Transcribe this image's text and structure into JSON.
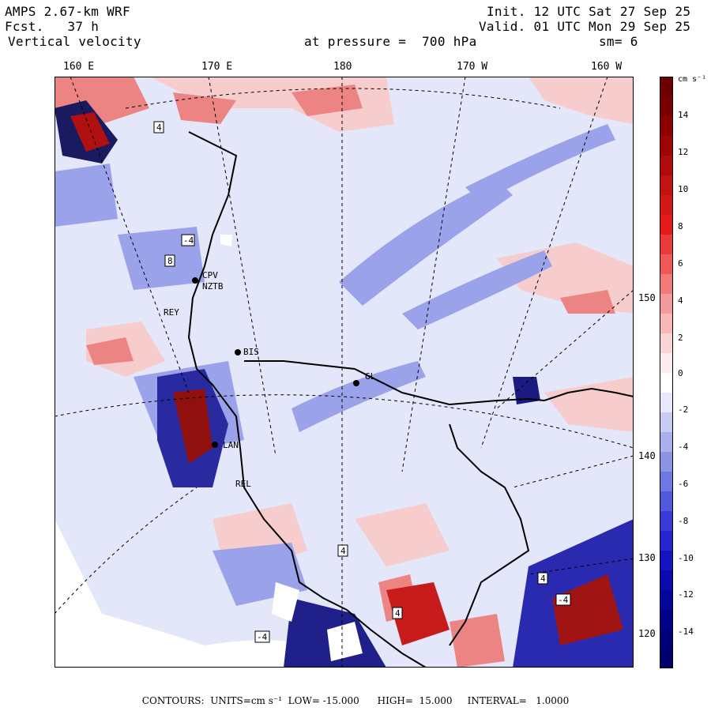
{
  "header": {
    "model": "AMPS 2.67-km WRF",
    "forecast_label": "Fcst.",
    "forecast_value": "37 h",
    "field": "Vertical velocity",
    "init": "Init. 12 UTC Sat 27 Sep 25",
    "valid": "Valid. 01 UTC Mon 29 Sep 25",
    "pressure": "at pressure =  700 hPa",
    "smoothing": "sm= 6"
  },
  "longitude_labels": [
    "160 E",
    "170 E",
    "180",
    "170 W",
    "160 W"
  ],
  "latitude_labels": [
    "150 W",
    "140 W",
    "130 W",
    "120 W"
  ],
  "stations": [
    "CPV",
    "NZTB",
    "BIS",
    "GL",
    "LAN",
    "REL",
    "REY"
  ],
  "colorbar": {
    "units": "cm s⁻¹",
    "tick_labels": [
      "14",
      "12",
      "10",
      "8",
      "6",
      "4",
      "2",
      "0",
      "-2",
      "-4",
      "-6",
      "-8",
      "-10",
      "-12",
      "-14"
    ],
    "colors": {
      "max_red": "#7a0000",
      "mid_red": "#e41a1a",
      "light_red": "#f6b8b8",
      "white": "#ffffff",
      "light_blue": "#c8ccf4",
      "mid_blue": "#3a3ad8",
      "max_blue": "#00007a"
    }
  },
  "contour_markers": [
    "4",
    "-4",
    "8"
  ],
  "footer": "CONTOURS:  UNITS=cm s⁻¹  LOW= -15.000      HIGH=  15.000     INTERVAL=   1.0000"
}
